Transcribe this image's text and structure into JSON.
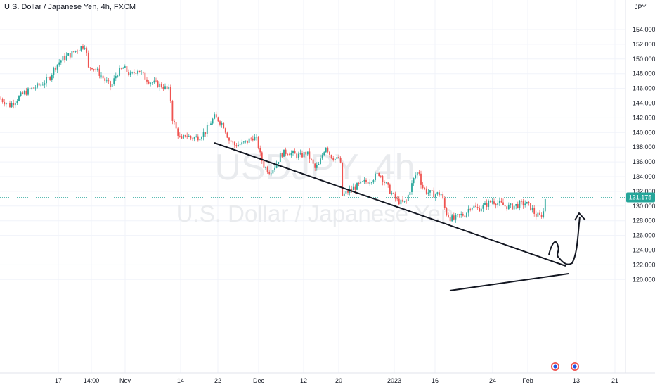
{
  "header": {
    "symbol_line": "U.S. Dollar / Japanese Yen, 4h, FXCM"
  },
  "watermark": {
    "ticker": "USDJPY, 4h",
    "name": "U.S. Dollar / Japanese Yen"
  },
  "price_axis": {
    "currency": "JPY",
    "current_price": "131.175",
    "current_price_value": 131.175,
    "badge_color": "#26a69a"
  },
  "chart_data": {
    "type": "candlestick",
    "title": "U.S. Dollar / Japanese Yen, 4h, FXCM",
    "symbol": "USDJPY",
    "interval": "4h",
    "ylim": [
      119,
      156
    ],
    "y_ticks": [
      "120.000",
      "122.000",
      "124.000",
      "126.000",
      "128.000",
      "130.000",
      "132.000",
      "134.000",
      "136.000",
      "138.000",
      "140.000",
      "142.000",
      "144.000",
      "146.000",
      "148.000",
      "150.000",
      "152.000",
      "154.000"
    ],
    "x_ticks": [
      "17",
      "14:00",
      "Nov",
      "14",
      "22",
      "Dec",
      "12",
      "20",
      "2023",
      "16",
      "24",
      "Feb",
      "13",
      "21"
    ],
    "close_path": [
      [
        0,
        144.6
      ],
      [
        8,
        144.1
      ],
      [
        14,
        143.7
      ],
      [
        22,
        144.4
      ],
      [
        32,
        145.2
      ],
      [
        44,
        145.9
      ],
      [
        58,
        146.5
      ],
      [
        70,
        147.4
      ],
      [
        78,
        148.9
      ],
      [
        88,
        150.0
      ],
      [
        100,
        150.6
      ],
      [
        110,
        151.3
      ],
      [
        118,
        151.8
      ],
      [
        122,
        152.0
      ],
      [
        125,
        148.6
      ],
      [
        130,
        149.1
      ],
      [
        140,
        148.2
      ],
      [
        150,
        147.0
      ],
      [
        158,
        146.2
      ],
      [
        166,
        148.0
      ],
      [
        176,
        148.8
      ],
      [
        186,
        147.7
      ],
      [
        196,
        148.6
      ],
      [
        206,
        147.5
      ],
      [
        214,
        146.9
      ],
      [
        222,
        146.6
      ],
      [
        232,
        146.3
      ],
      [
        238,
        145.8
      ],
      [
        242,
        145.8
      ],
      [
        244,
        142.3
      ],
      [
        250,
        140.6
      ],
      [
        258,
        138.8
      ],
      [
        264,
        139.8
      ],
      [
        272,
        139.2
      ],
      [
        282,
        139.4
      ],
      [
        292,
        140.1
      ],
      [
        300,
        141.4
      ],
      [
        305,
        142.1
      ],
      [
        310,
        141.8
      ],
      [
        318,
        141.0
      ],
      [
        326,
        139.0
      ],
      [
        334,
        138.3
      ],
      [
        344,
        138.4
      ],
      [
        352,
        138.8
      ],
      [
        360,
        139.4
      ],
      [
        366,
        138.9
      ],
      [
        370,
        137.0
      ],
      [
        376,
        135.3
      ],
      [
        384,
        134.7
      ],
      [
        392,
        135.5
      ],
      [
        400,
        137.1
      ],
      [
        410,
        137.4
      ],
      [
        418,
        137.0
      ],
      [
        428,
        136.8
      ],
      [
        436,
        137.3
      ],
      [
        442,
        136.3
      ],
      [
        448,
        135.1
      ],
      [
        454,
        135.6
      ],
      [
        460,
        137.4
      ],
      [
        464,
        138.2
      ],
      [
        470,
        136.9
      ],
      [
        478,
        136.3
      ],
      [
        484,
        136.6
      ],
      [
        487,
        131.4
      ],
      [
        494,
        131.9
      ],
      [
        506,
        132.6
      ],
      [
        518,
        133.2
      ],
      [
        528,
        133.6
      ],
      [
        540,
        134.5
      ],
      [
        548,
        133.1
      ],
      [
        556,
        131.9
      ],
      [
        564,
        130.8
      ],
      [
        572,
        130.4
      ],
      [
        578,
        130.6
      ],
      [
        584,
        132.4
      ],
      [
        590,
        134.0
      ],
      [
        596,
        134.8
      ],
      [
        600,
        132.7
      ],
      [
        608,
        131.9
      ],
      [
        618,
        131.6
      ],
      [
        628,
        131.7
      ],
      [
        634,
        129.2
      ],
      [
        640,
        128.4
      ],
      [
        646,
        128.2
      ],
      [
        654,
        128.7
      ],
      [
        662,
        128.9
      ],
      [
        670,
        130.1
      ],
      [
        680,
        129.6
      ],
      [
        690,
        130.1
      ],
      [
        700,
        130.7
      ],
      [
        710,
        130.4
      ],
      [
        718,
        130.0
      ],
      [
        728,
        129.9
      ],
      [
        738,
        130.2
      ],
      [
        748,
        130.4
      ],
      [
        756,
        129.7
      ],
      [
        762,
        128.8
      ],
      [
        768,
        128.6
      ],
      [
        773,
        129.1
      ],
      [
        776,
        131.2
      ]
    ]
  }
}
